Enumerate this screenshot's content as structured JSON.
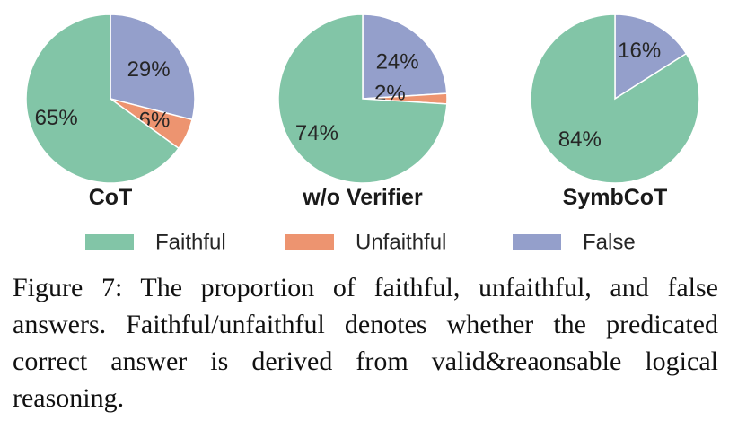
{
  "chart_data": {
    "type": "pie",
    "legend": {
      "placement": "bottom",
      "entries": [
        {
          "name": "Faithful",
          "color": "#82C5A7"
        },
        {
          "name": "Unfaithful",
          "color": "#ED9470"
        },
        {
          "name": "False",
          "color": "#949FCB"
        }
      ]
    },
    "charts": [
      {
        "title": "CoT",
        "slices": [
          {
            "name": "Faithful",
            "value": 65,
            "label": "65%"
          },
          {
            "name": "Unfaithful",
            "value": 6,
            "label": "6%"
          },
          {
            "name": "False",
            "value": 29,
            "label": "29%"
          }
        ]
      },
      {
        "title": "w/o Verifier",
        "slices": [
          {
            "name": "Faithful",
            "value": 74,
            "label": "74%"
          },
          {
            "name": "Unfaithful",
            "value": 2,
            "label": "2%"
          },
          {
            "name": "False",
            "value": 24,
            "label": "24%"
          }
        ]
      },
      {
        "title": "SymbCoT",
        "slices": [
          {
            "name": "Faithful",
            "value": 84,
            "label": "84%"
          },
          {
            "name": "Unfaithful",
            "value": 0,
            "label": ""
          },
          {
            "name": "False",
            "value": 16,
            "label": "16%"
          }
        ]
      }
    ]
  },
  "caption": "Figure 7:  The proportion of faithful, unfaithful, and false answers. Faithful/unfaithful denotes whether the predicated correct answer is derived from valid&reaonsable logical reasoning."
}
